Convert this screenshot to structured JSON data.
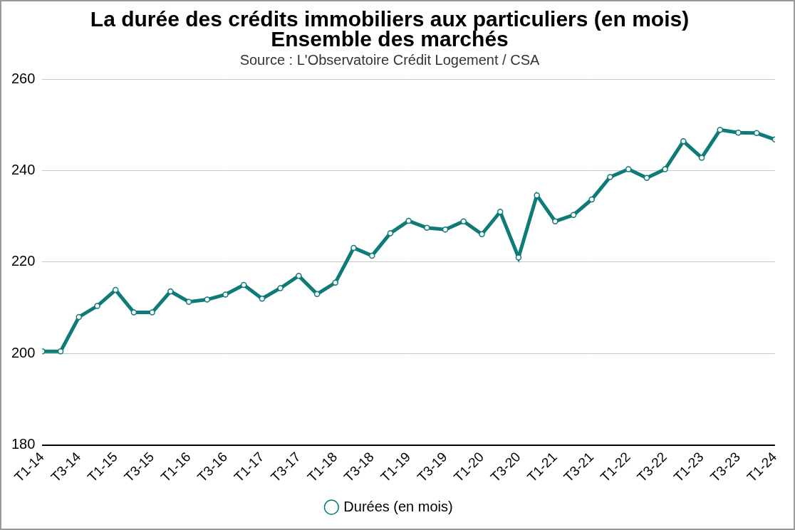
{
  "chart_data": {
    "type": "line",
    "title": [
      "La durée des crédits immobiliers aux particuliers (en mois)",
      "Ensemble des marchés"
    ],
    "subtitle": "Source : L'Observatoire Crédit Logement / CSA",
    "categories": [
      "T1-14",
      null,
      "T3-14",
      null,
      "T1-15",
      null,
      "T3-15",
      null,
      "T1-16",
      null,
      "T3-16",
      null,
      "T1-17",
      null,
      "T3-17",
      null,
      "T1-18",
      null,
      "T3-18",
      null,
      "T1-19",
      null,
      "T3-19",
      null,
      "T1-20",
      null,
      "T3-20",
      null,
      "T1-21",
      null,
      "T3-21",
      null,
      "T1-22",
      null,
      "T3-22",
      null,
      "T1-23",
      null,
      "T3-23",
      null,
      "T1-24"
    ],
    "series": [
      {
        "name": "Durées (en mois)",
        "color": "#0e7b78",
        "marker": "circle",
        "values": [
          200.5,
          200.5,
          208.0,
          210.4,
          213.9,
          209.0,
          209.0,
          213.6,
          211.3,
          211.8,
          212.9,
          215.0,
          212.0,
          214.3,
          217.0,
          213.0,
          215.5,
          223.1,
          221.4,
          226.3,
          229.0,
          227.5,
          227.1,
          228.9,
          226.1,
          231.0,
          221.0,
          234.6,
          228.9,
          230.3,
          233.7,
          238.6,
          240.3,
          238.4,
          240.3,
          246.4,
          242.8,
          248.9,
          248.3,
          248.2,
          246.8
        ]
      }
    ],
    "ylim": [
      180,
      260
    ],
    "yticks": [
      180,
      200,
      220,
      240,
      260
    ],
    "grid": true,
    "legend": "bottom"
  }
}
